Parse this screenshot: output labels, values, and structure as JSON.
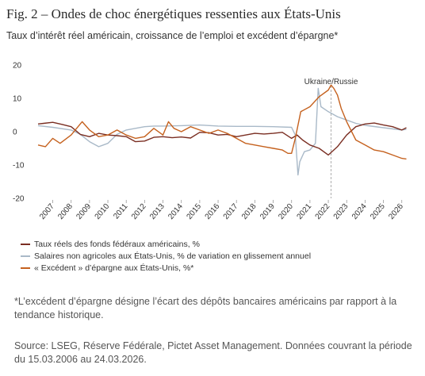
{
  "header": {
    "title": "Fig. 2 – Ondes de choc énergétiques ressenties aux États-Unis",
    "subtitle": "Taux d’intérêt réel américain, croissance de l’emploi et excédent d’épargne*"
  },
  "footer": {
    "note": "*L’excédent d’épargne désigne l’écart des dépôts bancaires américains par rapport à la tendance historique.",
    "source": "Source: LSEG, Réserve Fédérale, Pictet Asset Management. Données couvrant la période du 15.03.2006 au 24.03.2026."
  },
  "chart_data": {
    "type": "line",
    "xlim": [
      2006.2,
      2026.4
    ],
    "ylim": [
      -20,
      20
    ],
    "yticks": [
      -20,
      -10,
      0,
      10,
      20
    ],
    "xticks": [
      "2007",
      "2008",
      "2009",
      "2010",
      "2011",
      "2012",
      "2013",
      "2014",
      "2015",
      "2016",
      "2017",
      "2018",
      "2019",
      "2020",
      "2021",
      "2022",
      "2023",
      "2024",
      "2025",
      "2026"
    ],
    "grid": false,
    "legend_position": "bottom-left",
    "annotations": [
      {
        "text": "Ukraine/Russie",
        "x": 2022.15
      }
    ],
    "series": [
      {
        "name": "Taux réels des fonds fédéraux américains, %",
        "color": "#7a2e22",
        "x": [
          2006.2,
          2006.5,
          2007.0,
          2007.5,
          2008.0,
          2008.5,
          2009.0,
          2009.5,
          2010.0,
          2010.5,
          2011.0,
          2011.5,
          2012.0,
          2012.5,
          2013.0,
          2013.5,
          2014.0,
          2014.5,
          2015.0,
          2015.5,
          2016.0,
          2016.5,
          2017.0,
          2017.5,
          2018.0,
          2018.5,
          2019.0,
          2019.5,
          2020.0,
          2020.3,
          2020.6,
          2021.0,
          2021.5,
          2022.0,
          2022.5,
          2023.0,
          2023.5,
          2024.0,
          2024.5,
          2025.0,
          2025.5,
          2026.0,
          2026.25
        ],
        "y": [
          2.3,
          2.5,
          2.8,
          2.2,
          1.5,
          -0.8,
          -1.5,
          -0.5,
          -1.0,
          -1.2,
          -1.5,
          -3.0,
          -2.8,
          -1.7,
          -1.5,
          -1.8,
          -1.6,
          -1.9,
          -0.2,
          -0.3,
          -1.0,
          -0.8,
          -1.5,
          -1.0,
          -0.5,
          -0.7,
          -0.5,
          -0.2,
          -2.0,
          -1.0,
          -2.5,
          -4.0,
          -5.0,
          -7.0,
          -4.5,
          -1.0,
          1.5,
          2.3,
          2.6,
          2.0,
          1.5,
          0.5,
          1.2
        ]
      },
      {
        "name": "Salaires non agricoles aux États-Unis, % de variation en glissement annuel",
        "color": "#a9b9c8",
        "x": [
          2006.2,
          2007.0,
          2008.0,
          2008.5,
          2009.0,
          2009.5,
          2010.0,
          2010.5,
          2011.0,
          2011.5,
          2012.0,
          2012.5,
          2013.0,
          2014.0,
          2015.0,
          2016.0,
          2017.0,
          2018.0,
          2019.0,
          2020.0,
          2020.2,
          2020.35,
          2020.45,
          2020.7,
          2021.0,
          2021.3,
          2021.45,
          2021.6,
          2022.0,
          2022.5,
          2023.0,
          2023.5,
          2024.0,
          2025.0,
          2026.0,
          2026.25
        ],
        "y": [
          1.8,
          1.3,
          0.5,
          -0.8,
          -3.0,
          -4.5,
          -3.5,
          -0.8,
          0.5,
          1.0,
          1.5,
          1.7,
          1.7,
          1.8,
          2.0,
          1.7,
          1.6,
          1.6,
          1.5,
          1.3,
          -1.0,
          -13.0,
          -9.0,
          -6.0,
          -5.5,
          -3.5,
          13.0,
          7.5,
          6.0,
          4.5,
          3.5,
          2.5,
          1.9,
          1.2,
          0.5,
          0.7
        ]
      },
      {
        "name": "« Excédent » d’épargne aux États-Unis, %*",
        "color": "#c5611e",
        "x": [
          2006.2,
          2006.6,
          2007.0,
          2007.4,
          2008.0,
          2008.6,
          2009.0,
          2009.5,
          2010.0,
          2010.5,
          2011.0,
          2011.5,
          2012.0,
          2012.5,
          2013.0,
          2013.3,
          2013.6,
          2014.0,
          2014.5,
          2015.0,
          2015.5,
          2016.0,
          2016.5,
          2017.0,
          2017.5,
          2018.0,
          2018.5,
          2019.0,
          2019.5,
          2019.8,
          2020.0,
          2020.2,
          2020.5,
          2021.0,
          2021.5,
          2022.0,
          2022.15,
          2022.3,
          2022.5,
          2022.7,
          2023.0,
          2023.5,
          2024.0,
          2024.5,
          2025.0,
          2025.5,
          2026.0,
          2026.25
        ],
        "y": [
          -4.0,
          -4.5,
          -2.0,
          -3.5,
          -1.0,
          3.0,
          0.5,
          -1.5,
          -1.0,
          0.5,
          -1.0,
          -2.0,
          -1.5,
          1.0,
          -1.0,
          3.0,
          1.0,
          0.0,
          1.5,
          0.5,
          -0.5,
          0.5,
          -0.5,
          -2.0,
          -3.5,
          -4.0,
          -4.5,
          -5.0,
          -5.5,
          -6.5,
          -6.5,
          -2.0,
          6.0,
          7.5,
          10.5,
          12.5,
          14.0,
          13.0,
          11.0,
          7.0,
          3.0,
          -2.5,
          -4.0,
          -5.5,
          -6.0,
          -7.0,
          -8.0,
          -8.2
        ]
      }
    ]
  }
}
